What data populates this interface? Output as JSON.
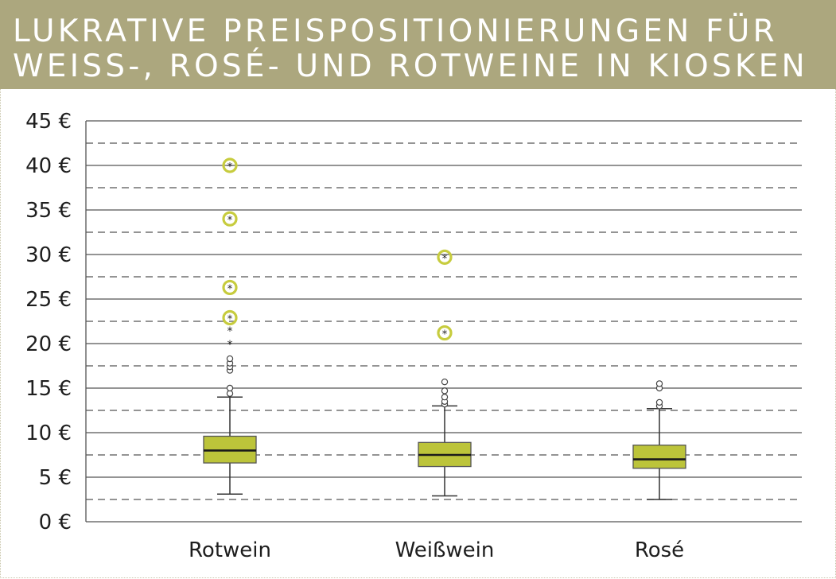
{
  "header": {
    "title_line1": "LUKRATIVE PREISPOSITIONIERUNGEN FÜR",
    "title_line2": "WEISS-, ROSÉ- UND ROTWEINE IN KIOSKEN"
  },
  "colors": {
    "header_bg": "#aca77e",
    "box_fill": "#bcc43a",
    "highlight_ring": "#c7cc3e",
    "grid": "#555555"
  },
  "chart_data": {
    "type": "box",
    "title": "LUKRATIVE PREISPOSITIONIERUNGEN FÜR WEISS-, ROSÉ- UND ROTWEINE IN KIOSKEN",
    "xlabel": "",
    "ylabel": "",
    "ylim": [
      0,
      45
    ],
    "y_ticks": [
      0,
      5,
      10,
      15,
      20,
      25,
      30,
      35,
      40,
      45
    ],
    "y_tick_labels": [
      "0 €",
      "5 €",
      "10 €",
      "15 €",
      "20 €",
      "25 €",
      "30 €",
      "35 €",
      "40 €",
      "45 €"
    ],
    "grid": "solid at 5 € steps, dashed at intermediate 2.5 € steps",
    "categories": [
      "Rotwein",
      "Weißwein",
      "Rosé"
    ],
    "boxes": [
      {
        "category": "Rotwein",
        "whisker_low": 3.1,
        "q1": 6.6,
        "median": 8.0,
        "q3": 9.6,
        "whisker_high": 14.0,
        "outliers": [
          14.4,
          15.0,
          17.0,
          17.4,
          17.8,
          18.3
        ],
        "extreme_outliers": [
          20.0,
          21.5
        ],
        "highlighted_outliers": [
          22.9,
          26.3,
          34.0,
          40.0
        ]
      },
      {
        "category": "Weißwein",
        "whisker_low": 2.9,
        "q1": 6.2,
        "median": 7.5,
        "q3": 8.9,
        "whisker_high": 13.0,
        "outliers": [
          13.2,
          13.5,
          14.0,
          14.7,
          15.7
        ],
        "extreme_outliers": [],
        "highlighted_outliers": [
          21.2,
          29.7
        ]
      },
      {
        "category": "Rosé",
        "whisker_low": 2.5,
        "q1": 6.0,
        "median": 7.0,
        "q3": 8.6,
        "whisker_high": 12.7,
        "outliers": [
          13.0,
          13.4,
          15.0,
          15.5
        ],
        "extreme_outliers": [],
        "highlighted_outliers": []
      }
    ]
  }
}
